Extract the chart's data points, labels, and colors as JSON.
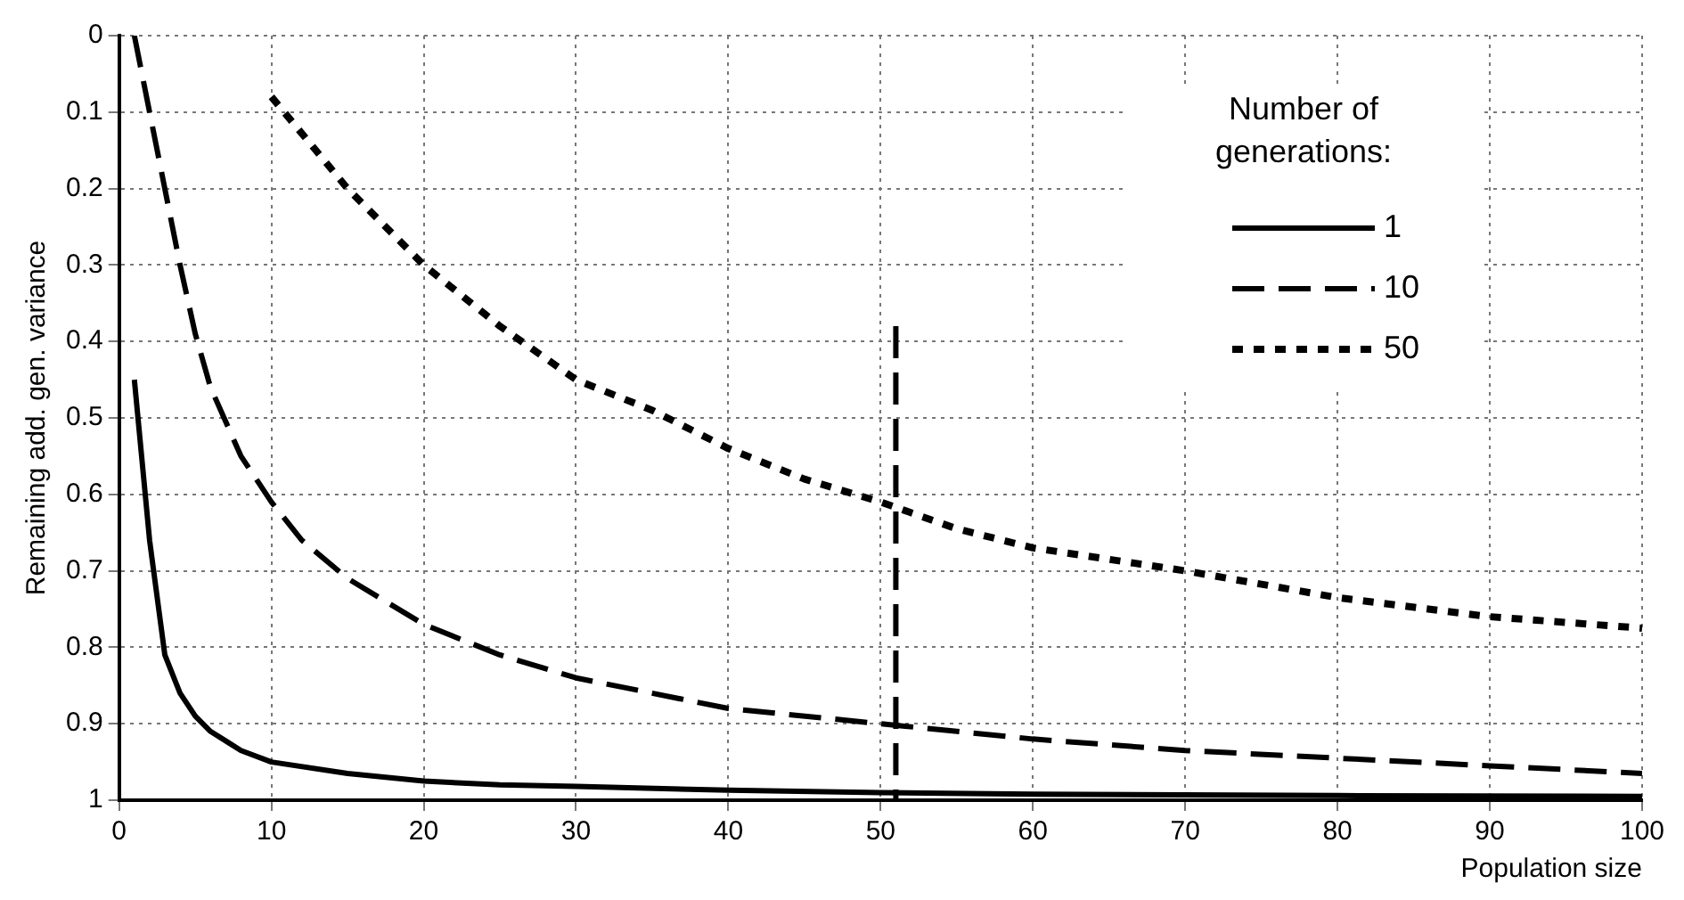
{
  "chart_data": {
    "type": "line",
    "xlabel": "Population size",
    "ylabel": "Remaining add. gen. variance",
    "legend_title": "Number of generations:",
    "legend": "top right",
    "grid": true,
    "marker": "none",
    "xlim": [
      0,
      100
    ],
    "xticks": [
      0,
      10,
      20,
      30,
      40,
      50,
      60,
      70,
      80,
      90,
      100
    ],
    "ylim": [
      1,
      0
    ],
    "yticks": [
      0,
      0.1,
      0.2,
      0.3,
      0.4,
      0.5,
      0.6,
      0.7,
      0.8,
      0.9,
      1
    ],
    "series": [
      {
        "name": "1",
        "color": "#000000",
        "line_style": "solid",
        "x": [
          1,
          2,
          3,
          4,
          5,
          6,
          8,
          10,
          15,
          20,
          25,
          30,
          40,
          50,
          60,
          80,
          100
        ],
        "values": [
          0.45,
          0.66,
          0.81,
          0.86,
          0.89,
          0.91,
          0.935,
          0.95,
          0.965,
          0.975,
          0.98,
          0.982,
          0.987,
          0.99,
          0.992,
          0.994,
          0.995
        ]
      },
      {
        "name": "10",
        "color": "#000000",
        "line_style": "dashed",
        "x": [
          1,
          2,
          3,
          4,
          5,
          6,
          8,
          10,
          12,
          15,
          20,
          25,
          30,
          40,
          50,
          60,
          70,
          80,
          90,
          100
        ],
        "values": [
          0,
          0.1,
          0.2,
          0.3,
          0.39,
          0.46,
          0.55,
          0.61,
          0.66,
          0.71,
          0.77,
          0.81,
          0.84,
          0.88,
          0.9,
          0.92,
          0.935,
          0.945,
          0.955,
          0.965
        ]
      },
      {
        "name": "50",
        "color": "#000000",
        "line_style": "dotted",
        "x": [
          10,
          15,
          20,
          25,
          30,
          35,
          40,
          45,
          50,
          55,
          60,
          70,
          80,
          90,
          100
        ],
        "values": [
          0.08,
          0.2,
          0.3,
          0.38,
          0.45,
          0.49,
          0.54,
          0.58,
          0.61,
          0.645,
          0.67,
          0.7,
          0.735,
          0.76,
          0.775
        ]
      },
      {
        "color": "#000000",
        "line_style": "dashed",
        "x": [
          51,
          51
        ],
        "values": [
          0.38,
          1
        ]
      }
    ]
  }
}
